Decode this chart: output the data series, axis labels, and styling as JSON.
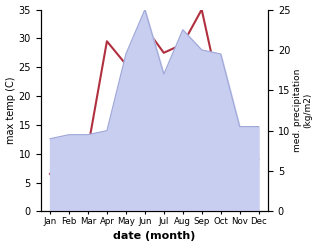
{
  "months": [
    "Jan",
    "Feb",
    "Mar",
    "Apr",
    "May",
    "Jun",
    "Jul",
    "Aug",
    "Sep",
    "Oct",
    "Nov",
    "Dec"
  ],
  "x": [
    1,
    2,
    3,
    4,
    5,
    6,
    7,
    8,
    9,
    10,
    11,
    12
  ],
  "temp": [
    6.5,
    9.0,
    11.0,
    29.5,
    25.5,
    32.0,
    27.5,
    29.0,
    35.0,
    20.0,
    10.5,
    9.0
  ],
  "precip": [
    9.0,
    9.5,
    9.5,
    10.0,
    19.5,
    25.0,
    17.0,
    22.5,
    20.0,
    19.5,
    10.5,
    10.5
  ],
  "temp_color": "#b03040",
  "precip_fill_color": "#c8cef0",
  "precip_line_color": "#a0a8d8",
  "temp_ylim": [
    0,
    35
  ],
  "temp_yticks": [
    0,
    5,
    10,
    15,
    20,
    25,
    30,
    35
  ],
  "precip_ylim": [
    0,
    25
  ],
  "precip_yticks": [
    0,
    5,
    10,
    15,
    20,
    25
  ],
  "xlabel": "date (month)",
  "ylabel_left": "max temp (C)",
  "ylabel_right": "med. precipitation\n(kg/m2)",
  "bg_color": "#ffffff"
}
